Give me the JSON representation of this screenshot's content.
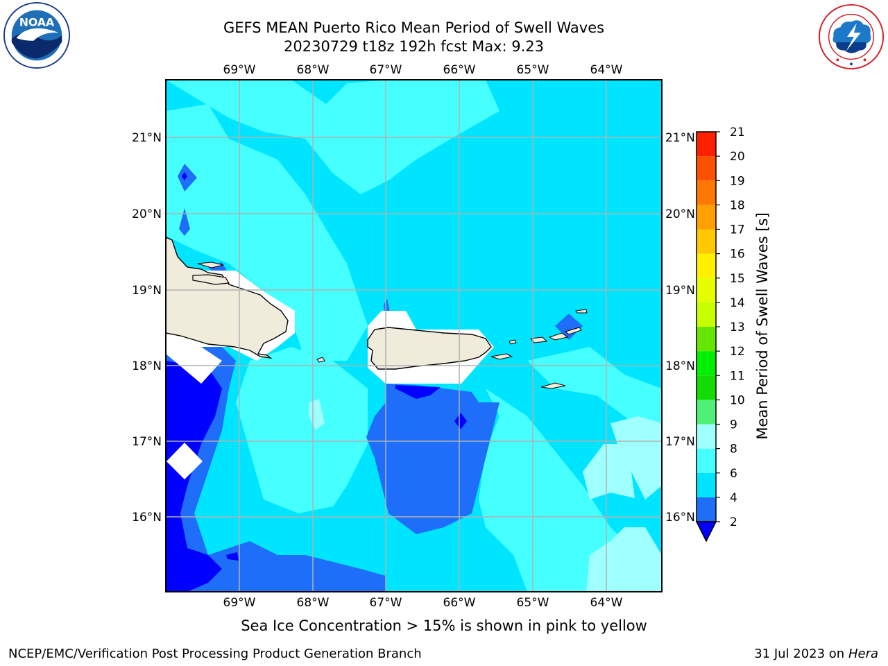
{
  "title_line1": "GEFS MEAN Puerto Rico Mean Period of Swell Waves",
  "title_line2": "20230729 t18z 192h fcst   Max: 9.23",
  "logos": {
    "left": {
      "name": "noaa-logo",
      "text": "NOAA",
      "ring_text": "NATIONAL OCEANIC AND ATMOSPHERIC ADMINISTRATION · U.S. DEPARTMENT OF COMMERCE"
    },
    "right": {
      "name": "nws-logo",
      "ring_text": "NATIONAL WEATHER SERVICE"
    }
  },
  "map": {
    "lon_labels": [
      "69°W",
      "68°W",
      "67°W",
      "66°W",
      "65°W",
      "64°W"
    ],
    "lat_labels": [
      "21°N",
      "20°N",
      "19°N",
      "18°N",
      "17°N",
      "16°N"
    ],
    "grid": true
  },
  "colorbar": {
    "label": "Mean Period of Swell Waves [s]",
    "ticks": [
      "2",
      "4",
      "6",
      "8",
      "9",
      "10",
      "11",
      "12",
      "13",
      "14",
      "15",
      "16",
      "17",
      "18",
      "19",
      "20",
      "21"
    ],
    "colors": [
      "#0000ff",
      "#1e6efa",
      "#00e5ff",
      "#46ffff",
      "#a0ffff",
      "#50f078",
      "#14dc00",
      "#00f000",
      "#64e600",
      "#c8ff00",
      "#e6ff00",
      "#fff000",
      "#ffc800",
      "#ffa000",
      "#ff7800",
      "#ff5000",
      "#ff2000",
      "#ff0000"
    ],
    "extend_min": true
  },
  "note": "Sea Ice Concentration > 15% is shown in pink to yellow",
  "footer_left": "NCEP/EMC/Verification Post Processing Product Generation Branch",
  "footer_right_date": "31 Jul 2023 on",
  "footer_right_machine": "Hera"
}
